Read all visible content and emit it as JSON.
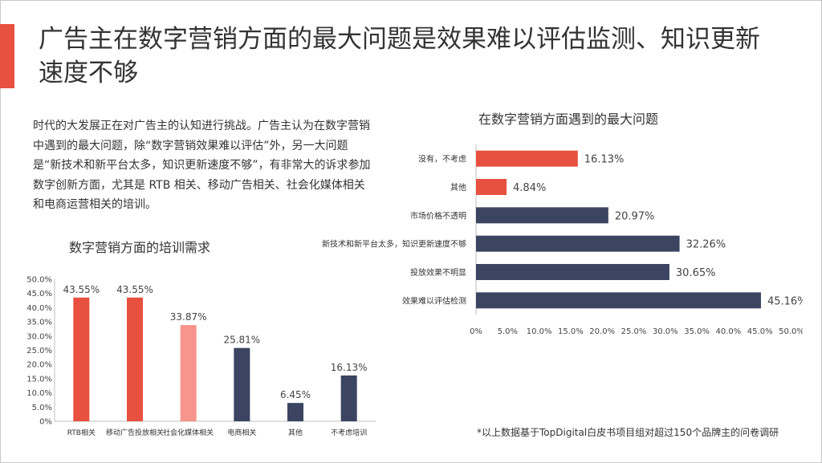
{
  "slide": {
    "title": "广告主在数字营销方面的最大问题是效果难以评估监测、知识更新速度不够",
    "paragraph": "时代的大发展正在对广告主的认知进行挑战。广告主认为在数字营销中遇到的最大问题，除“数字营销效果难以评估”外，另一大问题是“新技术和新平台太多，知识更新速度不够”，有非常大的诉求参加数字创新方面，尤其是 RTB 相关、移动广告相关、社会化媒体相关和电商运营相关的培训。",
    "footnote": "*以上数据基于TopDigital白皮书项目组对超过150个品牌主的问卷调研"
  },
  "colors": {
    "accent": "#e8503f",
    "red": "#e8503f",
    "pink": "#f7948b",
    "navy": "#3b4461"
  },
  "chart_data": [
    {
      "type": "bar",
      "title": "数字营销方面的培训需求",
      "categories": [
        "RTB相关",
        "移动广告投放相关",
        "社会化媒体相关",
        "电商相关",
        "其他",
        "不考虑培训"
      ],
      "values": [
        43.55,
        43.55,
        33.87,
        25.81,
        6.45,
        16.13
      ],
      "labels": [
        "43.55%",
        "43.55%",
        "33.87%",
        "25.81%",
        "6.45%",
        "16.13%"
      ],
      "bar_colors": [
        "#e8503f",
        "#e8503f",
        "#f7948b",
        "#3b4461",
        "#3b4461",
        "#3b4461"
      ],
      "ylim": [
        0,
        50
      ],
      "yticks": [
        "0%",
        "5.0%",
        "10.0%",
        "15.0%",
        "20.0%",
        "25.0%",
        "30.0%",
        "35.0%",
        "40.0%",
        "45.0%",
        "50.0%"
      ],
      "grid": false
    },
    {
      "type": "bar",
      "orientation": "horizontal",
      "title": "在数字营销方面遇到的最大问题",
      "categories": [
        "没有，不考虑",
        "其他",
        "市场价格不透明",
        "新技术和新平台太多，知识更新速度不够",
        "投放效果不明显",
        "效果难以评估检测"
      ],
      "values": [
        16.13,
        4.84,
        20.97,
        32.26,
        30.65,
        45.16
      ],
      "labels": [
        "16.13%",
        "4.84%",
        "20.97%",
        "32.26%",
        "30.65%",
        "45.16%"
      ],
      "bar_colors": [
        "#e8503f",
        "#e8503f",
        "#3b4461",
        "#3b4461",
        "#3b4461",
        "#3b4461"
      ],
      "xlim": [
        0,
        50
      ],
      "xticks": [
        "0%",
        "5.0%",
        "10.0%",
        "15.0%",
        "20.0%",
        "25.0%",
        "30.0%",
        "35.0%",
        "40.0%",
        "45.0%",
        "50.0%"
      ],
      "grid": false
    }
  ]
}
